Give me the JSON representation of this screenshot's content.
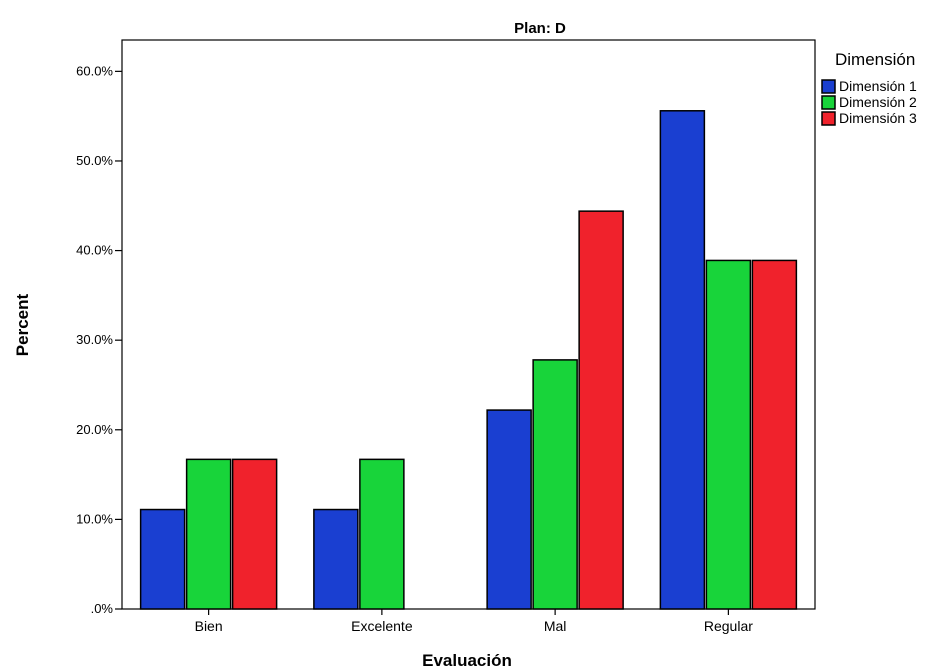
{
  "chart_data": {
    "type": "bar",
    "title": "Plan: D",
    "xlabel": "Evaluación",
    "ylabel": "Percent",
    "categories": [
      "Bien",
      "Excelente",
      "Mal",
      "Regular"
    ],
    "series": [
      {
        "name": "Dimensión 1",
        "color": "#1a3fd1",
        "values": [
          11.1,
          11.1,
          22.2,
          55.6
        ]
      },
      {
        "name": "Dimensión 2",
        "color": "#18d43a",
        "values": [
          16.7,
          16.7,
          27.8,
          38.9
        ]
      },
      {
        "name": "Dimensión 3",
        "color": "#f0222c",
        "values": [
          16.7,
          0,
          44.4,
          38.9
        ]
      }
    ],
    "ylim": [
      0,
      63.5
    ],
    "yticks": [
      0,
      10,
      20,
      30,
      40,
      50,
      60
    ],
    "ytick_labels": [
      ".0%",
      "10.0%",
      "20.0%",
      "30.0%",
      "40.0%",
      "50.0%",
      "60.0%"
    ],
    "grid": false,
    "legend": {
      "title": "Dimensión",
      "placement": "top-right"
    }
  }
}
